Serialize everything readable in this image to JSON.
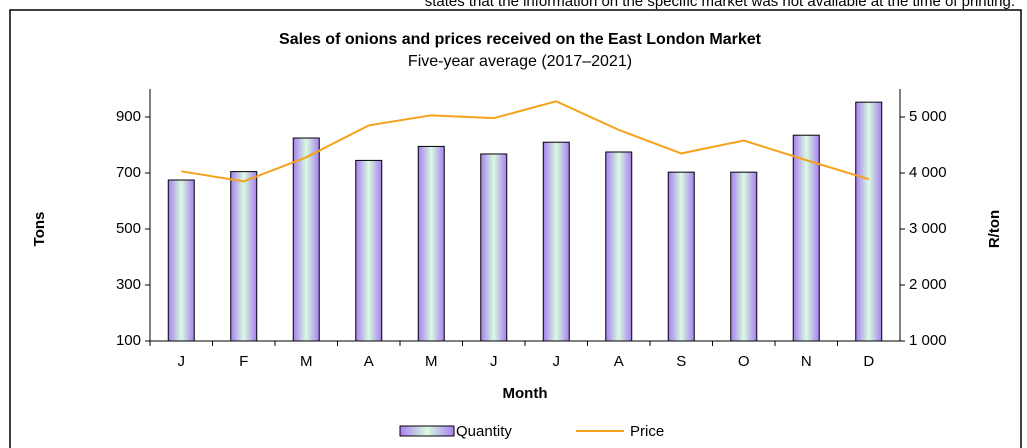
{
  "note_text": "states that the information on the specific market was not available at the time of printing.",
  "chart_data": {
    "type": "bar-line",
    "title": "Sales of onions and prices received on the East London Market",
    "subtitle": "Five-year average (2017–2021)",
    "x_label": "Month",
    "y_label": "Tons",
    "y2_label": "R/ton",
    "categories": [
      "J",
      "F",
      "M",
      "A",
      "M",
      "J",
      "J",
      "A",
      "S",
      "O",
      "N",
      "D"
    ],
    "series": [
      {
        "name": "Quantity",
        "type": "bar",
        "color": "#b38cf0",
        "values": [
          675,
          705,
          825,
          745,
          795,
          768,
          810,
          775,
          703,
          703,
          835,
          953
        ]
      },
      {
        "name": "Price",
        "type": "line",
        "axis": "y2",
        "color": "#f5a21b",
        "values": [
          4030,
          3850,
          4280,
          4850,
          5030,
          4980,
          5280,
          4770,
          4350,
          4580,
          4230,
          3890
        ]
      }
    ],
    "ylim": [
      100,
      1000
    ],
    "yticks": [
      100,
      300,
      500,
      700,
      900
    ],
    "y2lim": [
      1000,
      5500
    ],
    "y2ticks": [
      {
        "value": 1000,
        "label": "1 000"
      },
      {
        "value": 2000,
        "label": "2 000"
      },
      {
        "value": 3000,
        "label": "3 000"
      },
      {
        "value": 4000,
        "label": "4 000"
      },
      {
        "value": 5000,
        "label": "5 000"
      }
    ],
    "legend": "bottom"
  }
}
